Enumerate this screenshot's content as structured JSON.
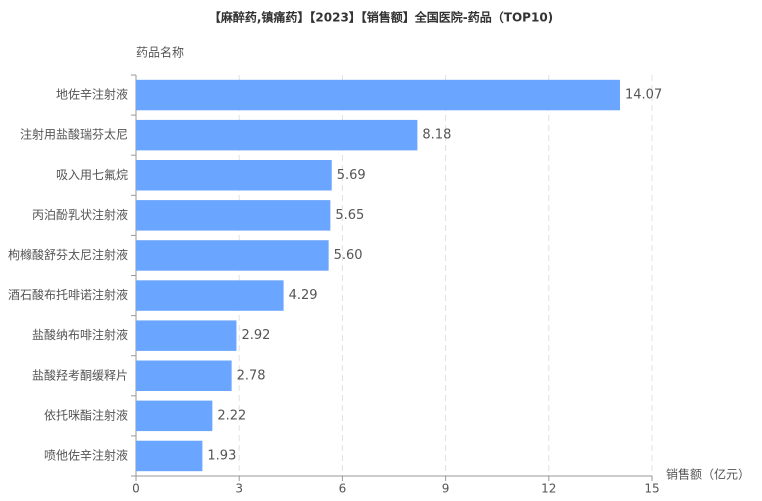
{
  "chart_data": {
    "type": "bar",
    "orientation": "horizontal",
    "title": "【麻醉药,镇痛药】【2023】【销售额】全国医院-药品（TOP10)",
    "y_label": "药品名称",
    "x_label": "销售额（亿元）",
    "categories": [
      "地佐辛注射液",
      "注射用盐酸瑞芬太尼",
      "吸入用七氟烷",
      "丙泊酚乳状注射液",
      "枸橼酸舒芬太尼注射液",
      "酒石酸布托啡诺注射液",
      "盐酸纳布啡注射液",
      "盐酸羟考酮缓释片",
      "依托咪酯注射液",
      "喷他佐辛注射液"
    ],
    "values": [
      14.07,
      8.18,
      5.69,
      5.65,
      5.6,
      4.29,
      2.92,
      2.78,
      2.22,
      1.93
    ],
    "value_labels": [
      "14.07",
      "8.18",
      "5.69",
      "5.65",
      "5.60",
      "4.29",
      "2.92",
      "2.78",
      "2.22",
      "1.93"
    ],
    "color": "#6aa5ff",
    "xlim": [
      0,
      15
    ],
    "xticks": [
      0,
      3,
      6,
      9,
      12,
      15
    ],
    "grid": true
  }
}
